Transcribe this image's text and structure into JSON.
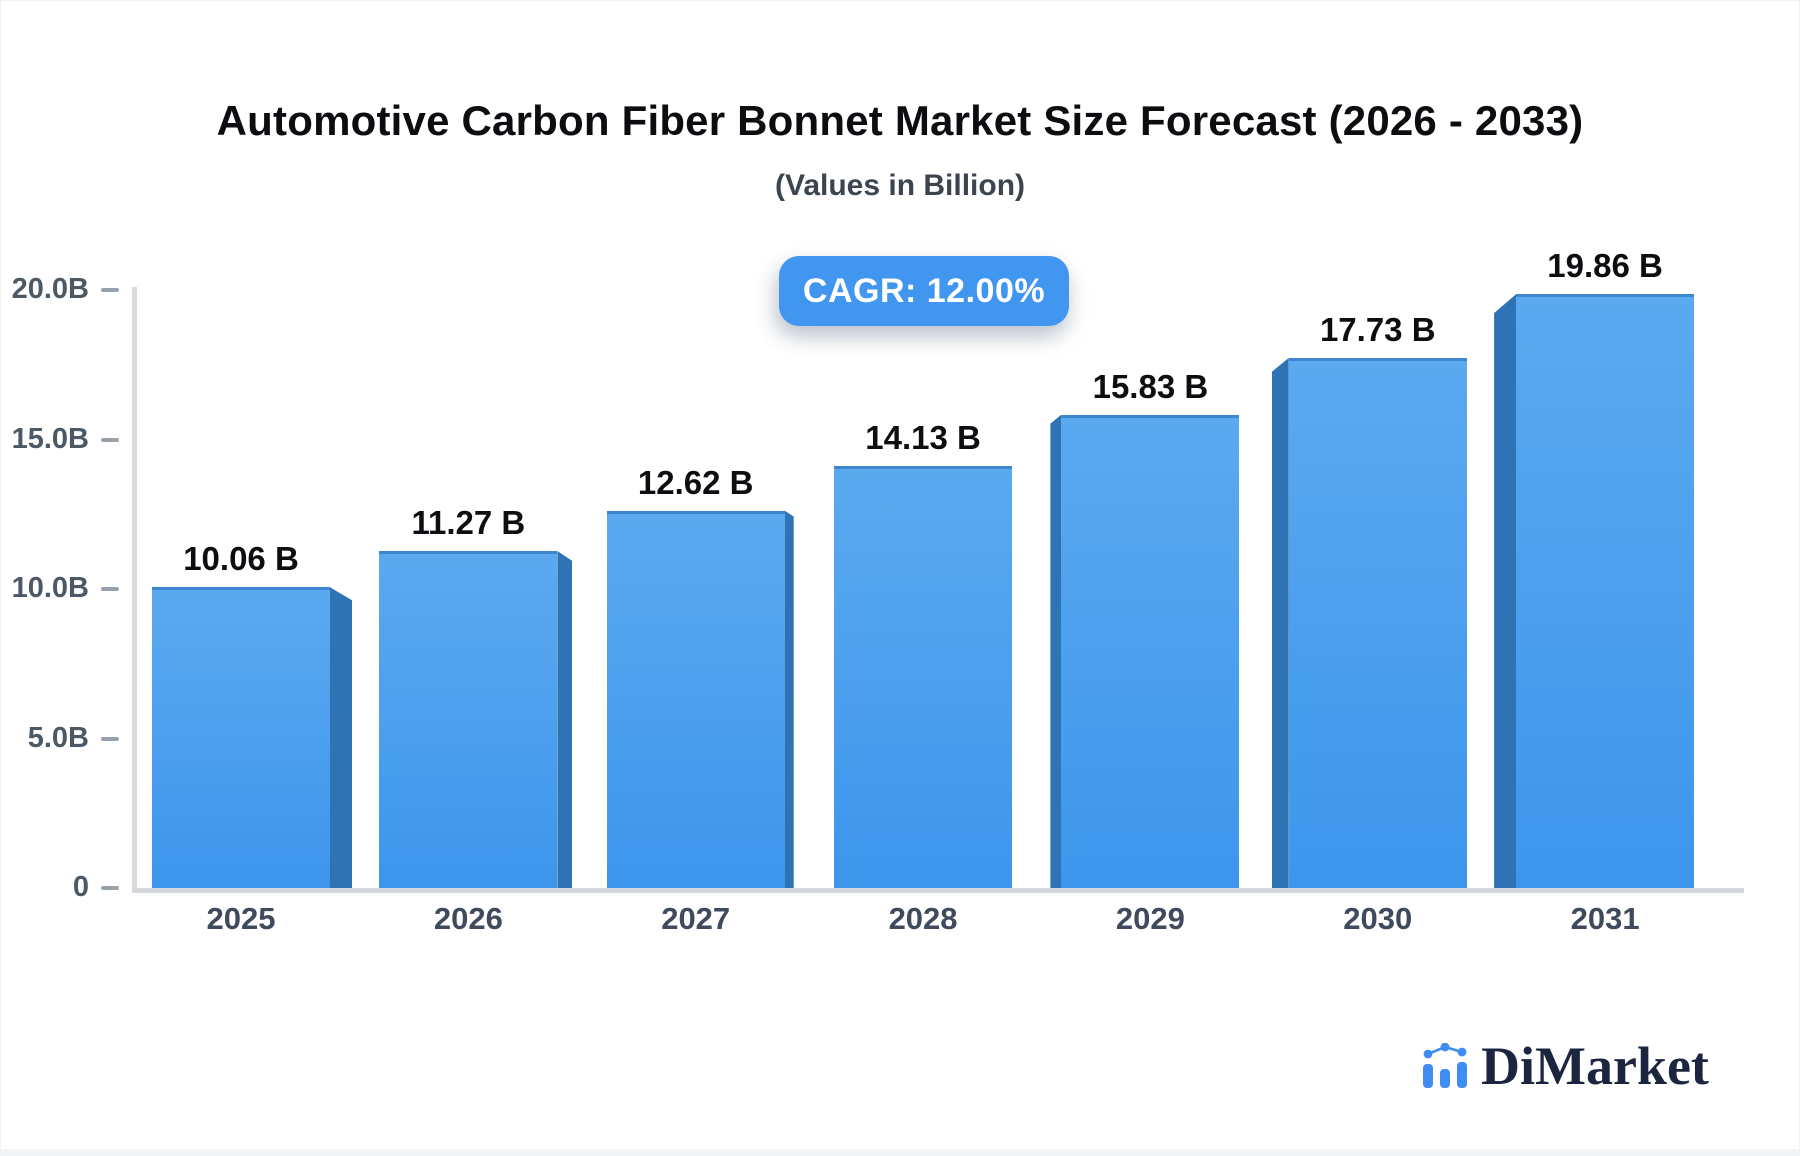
{
  "chart_data": {
    "type": "bar",
    "title": "Automotive Carbon Fiber Bonnet Market Size Forecast (2026 - 2033)",
    "subtitle": "(Values in Billion)",
    "cagr_label": "CAGR: 12.00%",
    "categories": [
      "2025",
      "2026",
      "2027",
      "2028",
      "2029",
      "2030",
      "2031"
    ],
    "values": [
      10.06,
      11.27,
      12.62,
      14.13,
      15.83,
      17.73,
      19.86
    ],
    "value_labels": [
      "10.06 B",
      "11.27 B",
      "12.62 B",
      "14.13 B",
      "15.83 B",
      "17.73 B",
      "19.86 B"
    ],
    "y_ticks": [
      {
        "label": "20.0B",
        "value": 20
      },
      {
        "label": "15.0B",
        "value": 15
      },
      {
        "label": "10.0B",
        "value": 10
      },
      {
        "label": "5.0B",
        "value": 5
      },
      {
        "label": "0",
        "value": 0
      }
    ],
    "ylim": [
      0,
      20
    ],
    "xlabel": "",
    "ylabel": "",
    "legend": "none",
    "grid": false,
    "bar_style": "3d-perspective"
  },
  "logo": {
    "text": "DiMarket",
    "icon": "mini-bar-chart-icon"
  },
  "colors": {
    "bar_face_top": "#5BA9EF",
    "bar_face_bottom": "#3D96EC",
    "bar_top_edge": "#3E86CF",
    "bar_side": "#2E74B5",
    "badge_bg": "#4196EF",
    "badge_text": "#FFFFFF",
    "axis_line": "#D8DCE0",
    "tick": "#98A2AC",
    "y_label": "#4B5866",
    "x_label": "#3F4A5C",
    "value_label": "#0C0E11",
    "title": "#0B0D10",
    "subtitle": "#3C4450",
    "logo_text": "#1B2540",
    "logo_icon": "#3F8CF3"
  }
}
